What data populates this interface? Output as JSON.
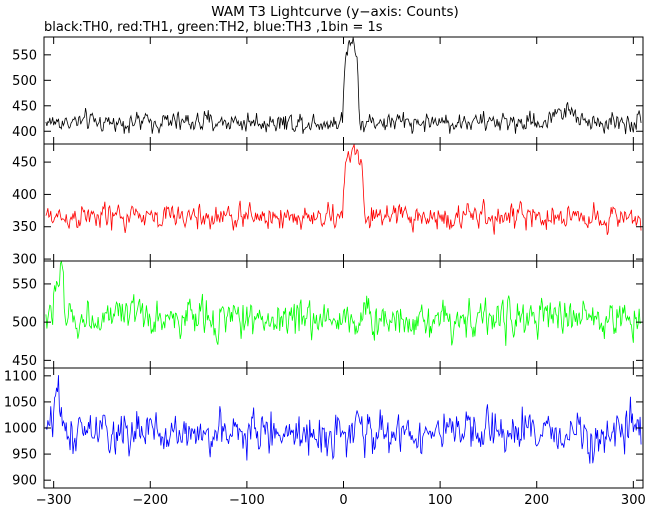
{
  "title": "WAM T3 Lightcurve (y−axis: Counts)",
  "subtitle": "black:TH0, red:TH1, green:TH2, blue:TH3 ,1bin = 1s",
  "chart_data": {
    "type": "line",
    "x_range": [
      -310,
      310
    ],
    "x_ticks": [
      -300,
      -200,
      -100,
      0,
      100,
      200,
      300
    ],
    "x_tick_labels": [
      "−300",
      "−200",
      "−100",
      "0",
      "100",
      "200",
      "300"
    ],
    "bin_seconds": 1,
    "panels": [
      {
        "series_name": "TH0",
        "color": "#000000",
        "ylim": [
          375,
          585
        ],
        "y_ticks": [
          400,
          450,
          500,
          550
        ],
        "baseline": 418,
        "noise": 20,
        "features": [
          {
            "type": "burst",
            "x_start": 0,
            "x_end": 15,
            "peak": 585
          },
          {
            "type": "bump",
            "x_start": 215,
            "x_end": 240,
            "level": 440
          }
        ]
      },
      {
        "series_name": "TH1",
        "color": "#ff0000",
        "ylim": [
          297,
          478
        ],
        "y_ticks": [
          300,
          350,
          400,
          450
        ],
        "baseline": 365,
        "noise": 20,
        "features": [
          {
            "type": "burst",
            "x_start": 0,
            "x_end": 20,
            "peak": 470
          }
        ]
      },
      {
        "series_name": "TH2",
        "color": "#00ff00",
        "ylim": [
          440,
          580
        ],
        "y_ticks": [
          450,
          500,
          550
        ],
        "baseline": 505,
        "noise": 25,
        "features": [
          {
            "type": "rise",
            "x_start": -300,
            "x_end": -290,
            "level": 555
          }
        ]
      },
      {
        "series_name": "TH3",
        "color": "#0000ff",
        "ylim": [
          885,
          1115
        ],
        "y_ticks": [
          900,
          950,
          1000,
          1050,
          1100
        ],
        "baseline": 990,
        "noise": 40,
        "features": [
          {
            "type": "rise",
            "x_start": -300,
            "x_end": -295,
            "level": 1080
          }
        ]
      }
    ]
  }
}
